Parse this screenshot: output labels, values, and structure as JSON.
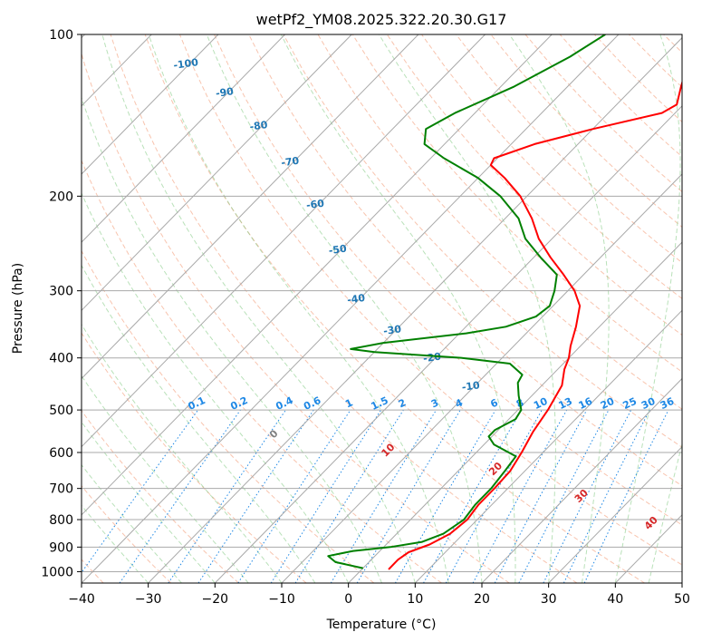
{
  "chart_data": {
    "type": "skew-t log-p",
    "title": "wetPf2_YM08.2025.322.20.30.G17",
    "xlabel": "Temperature (°C)",
    "ylabel": "Pressure (hPa)",
    "xlim": [
      -40,
      50
    ],
    "ylim_hpa": [
      1050,
      100
    ],
    "x_ticks": [
      -40,
      -30,
      -20,
      -10,
      0,
      10,
      20,
      30,
      40,
      50
    ],
    "x_tick_labels": [
      "−40",
      "−30",
      "−20",
      "−10",
      "0",
      "10",
      "20",
      "30",
      "40",
      "50"
    ],
    "p_ticks": [
      100,
      200,
      300,
      400,
      500,
      600,
      700,
      800,
      900,
      1000
    ],
    "p_tick_labels": [
      "100",
      "200",
      "300",
      "400",
      "500",
      "600",
      "700",
      "800",
      "900",
      "1000"
    ],
    "isotherm_labels": [
      {
        "t": -100,
        "text": "-100"
      },
      {
        "t": -90,
        "text": "-90"
      },
      {
        "t": -80,
        "text": "-80"
      },
      {
        "t": -70,
        "text": "-70"
      },
      {
        "t": -60,
        "text": "-60"
      },
      {
        "t": -50,
        "text": "-50"
      },
      {
        "t": -40,
        "text": "-40"
      },
      {
        "t": -30,
        "text": "-30"
      },
      {
        "t": -20,
        "text": "-20"
      },
      {
        "t": -10,
        "text": "-10"
      }
    ],
    "mixing_ratio_labels": [
      {
        "w": 0.1,
        "text": "0.1"
      },
      {
        "w": 0.2,
        "text": "0.2"
      },
      {
        "w": 0.4,
        "text": "0.4"
      },
      {
        "w": 0.6,
        "text": "0.6"
      },
      {
        "w": 1,
        "text": "1"
      },
      {
        "w": 1.5,
        "text": "1.5"
      },
      {
        "w": 2,
        "text": "2"
      },
      {
        "w": 3,
        "text": "3"
      },
      {
        "w": 4,
        "text": "4"
      },
      {
        "w": 6,
        "text": "6"
      },
      {
        "w": 8,
        "text": "8"
      },
      {
        "w": 10,
        "text": "10"
      },
      {
        "w": 13,
        "text": "13"
      },
      {
        "w": 16,
        "text": "16"
      },
      {
        "w": 20,
        "text": "20"
      },
      {
        "w": 25,
        "text": "25"
      },
      {
        "w": 30,
        "text": "30"
      },
      {
        "w": 36,
        "text": "36"
      }
    ],
    "moist_adiabat_labels": [
      {
        "t": 0,
        "text": "0"
      },
      {
        "t": 10,
        "text": "10"
      },
      {
        "t": 20,
        "text": "20"
      },
      {
        "t": 30,
        "text": "30"
      },
      {
        "t": 40,
        "text": "40"
      }
    ],
    "series": [
      {
        "name": "Temperature",
        "color": "#ff0000",
        "points": [
          {
            "p": 990,
            "t": 4.0
          },
          {
            "p": 950,
            "t": 4.0
          },
          {
            "p": 920,
            "t": 4.5
          },
          {
            "p": 890,
            "t": 6.5
          },
          {
            "p": 850,
            "t": 8.0
          },
          {
            "p": 800,
            "t": 8.5
          },
          {
            "p": 750,
            "t": 8.0
          },
          {
            "p": 700,
            "t": 8.0
          },
          {
            "p": 650,
            "t": 7.8
          },
          {
            "p": 600,
            "t": 6.8
          },
          {
            "p": 550,
            "t": 5.5
          },
          {
            "p": 500,
            "t": 4.5
          },
          {
            "p": 450,
            "t": 3.0
          },
          {
            "p": 420,
            "t": 1.0
          },
          {
            "p": 400,
            "t": 0.0
          },
          {
            "p": 380,
            "t": -1.5
          },
          {
            "p": 350,
            "t": -3.5
          },
          {
            "p": 320,
            "t": -6.0
          },
          {
            "p": 300,
            "t": -9.0
          },
          {
            "p": 280,
            "t": -13.0
          },
          {
            "p": 260,
            "t": -17.5
          },
          {
            "p": 240,
            "t": -22.0
          },
          {
            "p": 220,
            "t": -26.0
          },
          {
            "p": 200,
            "t": -31.0
          },
          {
            "p": 185,
            "t": -36.0
          },
          {
            "p": 175,
            "t": -40.0
          },
          {
            "p": 170,
            "t": -40.5
          },
          {
            "p": 160,
            "t": -36.5
          },
          {
            "p": 150,
            "t": -30.0
          },
          {
            "p": 140,
            "t": -22.0
          },
          {
            "p": 135,
            "t": -21.0
          },
          {
            "p": 125,
            "t": -23.0
          },
          {
            "p": 115,
            "t": -25.0
          },
          {
            "p": 105,
            "t": -26.5
          },
          {
            "p": 100,
            "t": -28.0
          }
        ]
      },
      {
        "name": "Dewpoint",
        "color": "#008000",
        "points": [
          {
            "p": 985,
            "t": 0.0
          },
          {
            "p": 960,
            "t": -5.0
          },
          {
            "p": 935,
            "t": -7.0
          },
          {
            "p": 915,
            "t": -4.0
          },
          {
            "p": 900,
            "t": 1.0
          },
          {
            "p": 880,
            "t": 5.0
          },
          {
            "p": 850,
            "t": 7.0
          },
          {
            "p": 800,
            "t": 8.0
          },
          {
            "p": 750,
            "t": 7.5
          },
          {
            "p": 700,
            "t": 7.5
          },
          {
            "p": 650,
            "t": 7.0
          },
          {
            "p": 610,
            "t": 6.5
          },
          {
            "p": 580,
            "t": 1.5
          },
          {
            "p": 560,
            "t": -0.5
          },
          {
            "p": 545,
            "t": -0.5
          },
          {
            "p": 520,
            "t": 1.0
          },
          {
            "p": 500,
            "t": 0.5
          },
          {
            "p": 470,
            "t": -2.0
          },
          {
            "p": 445,
            "t": -4.0
          },
          {
            "p": 430,
            "t": -4.5
          },
          {
            "p": 410,
            "t": -8.0
          },
          {
            "p": 400,
            "t": -16.0
          },
          {
            "p": 390,
            "t": -30.0
          },
          {
            "p": 385,
            "t": -34.0
          },
          {
            "p": 375,
            "t": -30.0
          },
          {
            "p": 360,
            "t": -19.0
          },
          {
            "p": 350,
            "t": -14.0
          },
          {
            "p": 335,
            "t": -11.0
          },
          {
            "p": 320,
            "t": -10.5
          },
          {
            "p": 300,
            "t": -12.0
          },
          {
            "p": 280,
            "t": -14.0
          },
          {
            "p": 260,
            "t": -19.0
          },
          {
            "p": 240,
            "t": -24.0
          },
          {
            "p": 220,
            "t": -28.0
          },
          {
            "p": 200,
            "t": -34.0
          },
          {
            "p": 185,
            "t": -40.0
          },
          {
            "p": 170,
            "t": -48.0
          },
          {
            "p": 160,
            "t": -53.0
          },
          {
            "p": 150,
            "t": -55.0
          },
          {
            "p": 140,
            "t": -53.0
          },
          {
            "p": 125,
            "t": -48.0
          },
          {
            "p": 110,
            "t": -44.0
          },
          {
            "p": 100,
            "t": -42.0
          }
        ]
      }
    ],
    "grid": true
  }
}
